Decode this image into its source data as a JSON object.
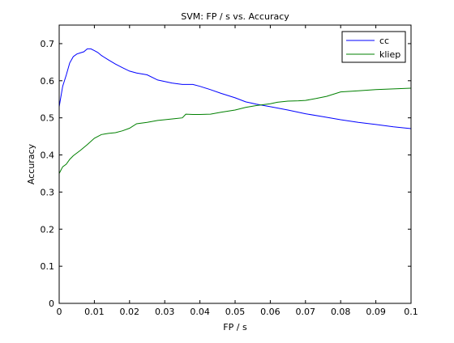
{
  "chart_data": {
    "type": "line",
    "title": "SVM: FP / s vs. Accuracy",
    "xlabel": "FP / s",
    "ylabel": "Accuracy",
    "xlim": [
      0,
      0.1
    ],
    "ylim": [
      0,
      0.75
    ],
    "xticks": [
      0,
      0.01,
      0.02,
      0.03,
      0.04,
      0.05,
      0.06,
      0.07,
      0.08,
      0.09,
      0.1
    ],
    "xtick_labels": [
      "0",
      "0.01",
      "0.02",
      "0.03",
      "0.04",
      "0.05",
      "0.06",
      "0.07",
      "0.08",
      "0.09",
      "0.1"
    ],
    "yticks": [
      0,
      0.1,
      0.2,
      0.3,
      0.4,
      0.5,
      0.6,
      0.7
    ],
    "ytick_labels": [
      "0",
      "0.1",
      "0.2",
      "0.3",
      "0.4",
      "0.5",
      "0.6",
      "0.7"
    ],
    "grid": false,
    "legend_position": "top-right",
    "series": [
      {
        "name": "cc",
        "color": "#0000ff",
        "x": [
          0,
          0.001,
          0.002,
          0.003,
          0.004,
          0.005,
          0.006,
          0.007,
          0.008,
          0.009,
          0.01,
          0.011,
          0.012,
          0.014,
          0.016,
          0.018,
          0.02,
          0.022,
          0.025,
          0.028,
          0.03,
          0.032,
          0.035,
          0.038,
          0.04,
          0.043,
          0.046,
          0.05,
          0.053,
          0.056,
          0.06,
          0.065,
          0.07,
          0.075,
          0.08,
          0.085,
          0.09,
          0.095,
          0.1
        ],
        "y": [
          0.53,
          0.585,
          0.615,
          0.648,
          0.665,
          0.672,
          0.675,
          0.678,
          0.686,
          0.686,
          0.681,
          0.676,
          0.668,
          0.656,
          0.645,
          0.635,
          0.626,
          0.621,
          0.616,
          0.602,
          0.598,
          0.594,
          0.59,
          0.59,
          0.585,
          0.576,
          0.566,
          0.554,
          0.543,
          0.537,
          0.53,
          0.521,
          0.511,
          0.503,
          0.495,
          0.488,
          0.482,
          0.476,
          0.471
        ]
      },
      {
        "name": "kliep",
        "color": "#008000",
        "x": [
          0,
          0.001,
          0.002,
          0.003,
          0.004,
          0.006,
          0.008,
          0.01,
          0.012,
          0.014,
          0.016,
          0.018,
          0.02,
          0.022,
          0.025,
          0.028,
          0.03,
          0.033,
          0.035,
          0.036,
          0.038,
          0.04,
          0.043,
          0.046,
          0.05,
          0.053,
          0.056,
          0.06,
          0.062,
          0.065,
          0.068,
          0.07,
          0.073,
          0.076,
          0.08,
          0.085,
          0.09,
          0.095,
          0.1
        ],
        "y": [
          0.35,
          0.368,
          0.375,
          0.388,
          0.398,
          0.412,
          0.428,
          0.445,
          0.455,
          0.458,
          0.46,
          0.465,
          0.472,
          0.484,
          0.488,
          0.493,
          0.495,
          0.498,
          0.5,
          0.51,
          0.509,
          0.509,
          0.51,
          0.515,
          0.521,
          0.528,
          0.533,
          0.538,
          0.542,
          0.545,
          0.546,
          0.547,
          0.552,
          0.558,
          0.57,
          0.573,
          0.576,
          0.578,
          0.58
        ]
      }
    ]
  }
}
